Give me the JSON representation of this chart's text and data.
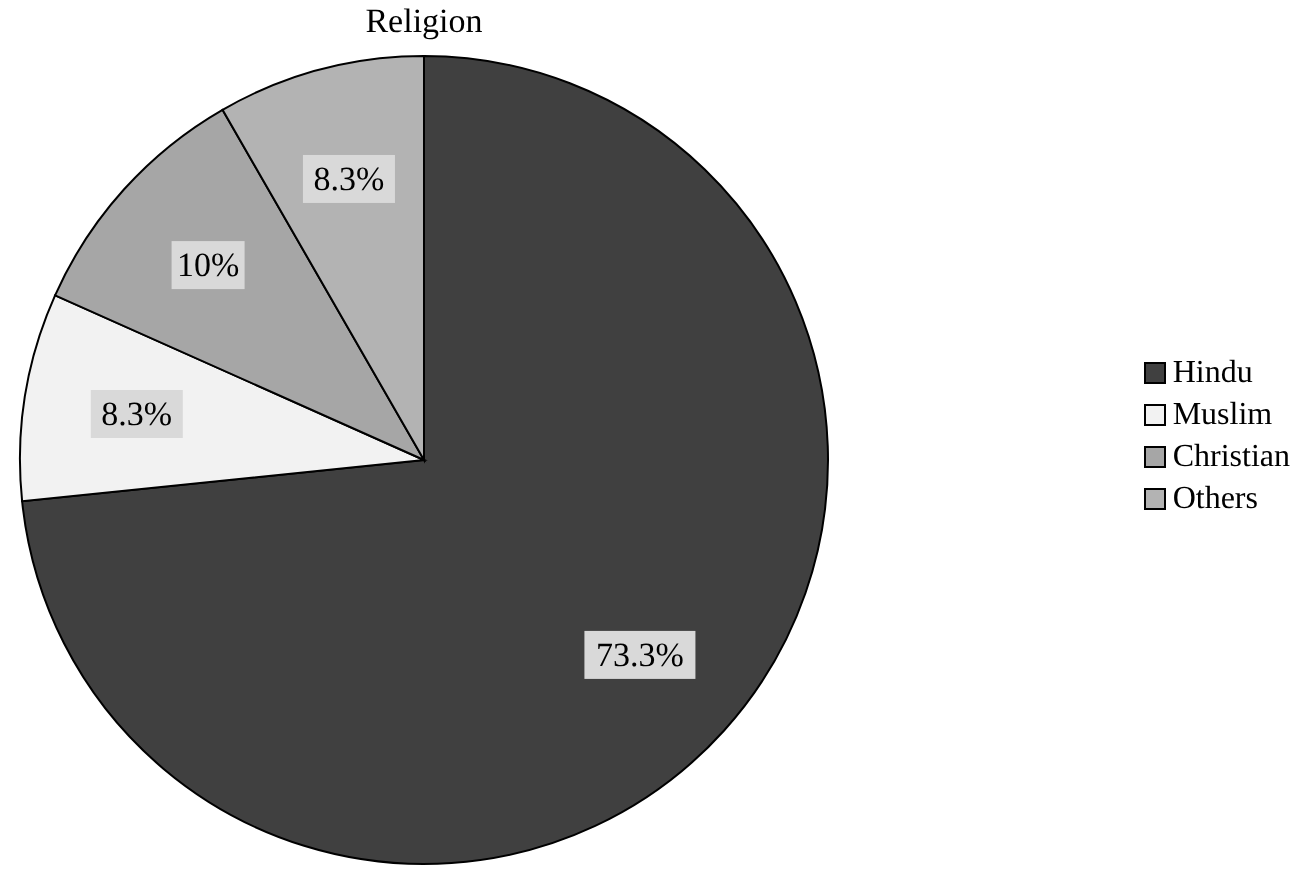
{
  "chart_data": {
    "type": "pie",
    "title": "Religion",
    "categories": [
      "Hindu",
      "Muslim",
      "Christian",
      "Others"
    ],
    "values": [
      73.3,
      8.3,
      10,
      8.3
    ],
    "value_labels": [
      "73.3%",
      "8.3%",
      "10%",
      "8.3%"
    ],
    "colors": [
      "#404040",
      "#f2f2f2",
      "#a6a6a6",
      "#b3b3b3"
    ],
    "legend": "right"
  }
}
